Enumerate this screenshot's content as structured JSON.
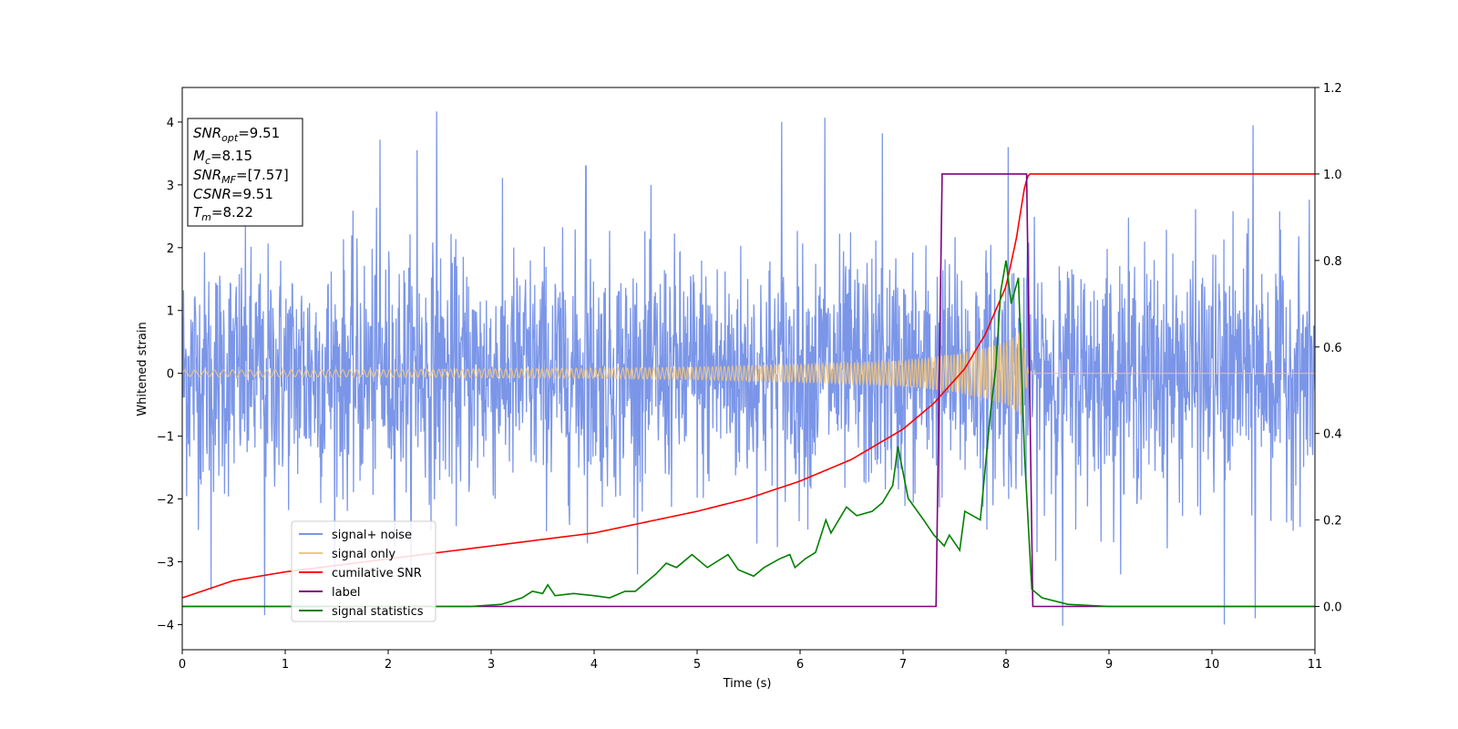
{
  "chart_data": {
    "type": "line",
    "xlabel": "Time (s)",
    "ylabel": "Whitened strain",
    "xlim": [
      0,
      11
    ],
    "ylim_left": [
      -4.4,
      4.55
    ],
    "ylim_right": [
      -0.1,
      1.2
    ],
    "x_ticks": [
      "0",
      "1",
      "2",
      "3",
      "4",
      "5",
      "6",
      "7",
      "8",
      "9",
      "10",
      "11"
    ],
    "y_ticks_left": [
      "−4",
      "−3",
      "−2",
      "−1",
      "0",
      "1",
      "2",
      "3",
      "4"
    ],
    "y_ticks_right": [
      "0.0",
      "0.2",
      "0.4",
      "0.6",
      "0.8",
      "1.0",
      "1.2"
    ],
    "grid": false,
    "legend_position": "lower-left",
    "annotation": {
      "lines": [
        {
          "sym": "SNR",
          "sub": "opt",
          "val": "=9.51"
        },
        {
          "sym": "M",
          "sub": "c",
          "val": "=8.15"
        },
        {
          "sym": "SNR",
          "sub": "MF",
          "val": "=[7.57]"
        },
        {
          "sym": "CSNR",
          "sub": "",
          "val": "=9.51"
        },
        {
          "sym": "T",
          "sub": "m",
          "val": "=8.22"
        }
      ]
    },
    "series": [
      {
        "name": "signal+ noise",
        "color": "#7b96e8",
        "axis": "left",
        "description": "whitened noise, amplitude about ±2, spikes to ~4",
        "spike_peaks": [
          [
            0.28,
            -3.45
          ],
          [
            0.8,
            -3.85
          ],
          [
            1.92,
            3.72
          ],
          [
            2.47,
            4.17
          ],
          [
            2.28,
            3.55
          ],
          [
            3.92,
            3.3
          ],
          [
            5.82,
            4.0
          ],
          [
            6.24,
            4.07
          ],
          [
            6.8,
            3.82
          ],
          [
            8.02,
            3.6
          ],
          [
            10.12,
            -4.0
          ],
          [
            10.42,
            -3.9
          ],
          [
            8.55,
            -4.02
          ],
          [
            10.4,
            3.95
          ]
        ]
      },
      {
        "name": "signal only",
        "color": "#f4c77a",
        "axis": "left",
        "envelope": [
          [
            0,
            0.05
          ],
          [
            2,
            0.06
          ],
          [
            4,
            0.08
          ],
          [
            5,
            0.1
          ],
          [
            6,
            0.14
          ],
          [
            7,
            0.2
          ],
          [
            7.5,
            0.3
          ],
          [
            7.8,
            0.4
          ],
          [
            8.0,
            0.5
          ],
          [
            8.1,
            0.6
          ],
          [
            8.15,
            0.7
          ],
          [
            8.22,
            0.0
          ],
          [
            11,
            0.0
          ]
        ]
      },
      {
        "name": "cumilative SNR",
        "color": "#ff0000",
        "axis": "right",
        "points": [
          [
            0,
            0.02
          ],
          [
            0.5,
            0.06
          ],
          [
            1,
            0.08
          ],
          [
            2,
            0.11
          ],
          [
            3,
            0.14
          ],
          [
            4,
            0.17
          ],
          [
            5,
            0.22
          ],
          [
            5.5,
            0.25
          ],
          [
            6,
            0.29
          ],
          [
            6.5,
            0.34
          ],
          [
            7,
            0.41
          ],
          [
            7.3,
            0.47
          ],
          [
            7.6,
            0.55
          ],
          [
            7.8,
            0.63
          ],
          [
            8.0,
            0.74
          ],
          [
            8.1,
            0.85
          ],
          [
            8.18,
            0.97
          ],
          [
            8.22,
            1.0
          ],
          [
            11,
            1.0
          ]
        ]
      },
      {
        "name": "label",
        "color": "#800080",
        "axis": "right",
        "points": [
          [
            0,
            0
          ],
          [
            7.32,
            0
          ],
          [
            7.38,
            1
          ],
          [
            8.2,
            1
          ],
          [
            8.26,
            0
          ],
          [
            11,
            0
          ]
        ]
      },
      {
        "name": "signal statistics",
        "color": "#008000",
        "axis": "right",
        "points": [
          [
            0,
            0.0
          ],
          [
            1,
            0.0
          ],
          [
            2,
            0.0
          ],
          [
            2.8,
            0.0
          ],
          [
            3.1,
            0.005
          ],
          [
            3.3,
            0.02
          ],
          [
            3.4,
            0.035
          ],
          [
            3.5,
            0.03
          ],
          [
            3.55,
            0.05
          ],
          [
            3.62,
            0.025
          ],
          [
            3.8,
            0.03
          ],
          [
            4.0,
            0.025
          ],
          [
            4.15,
            0.02
          ],
          [
            4.3,
            0.035
          ],
          [
            4.4,
            0.035
          ],
          [
            4.6,
            0.075
          ],
          [
            4.7,
            0.1
          ],
          [
            4.8,
            0.09
          ],
          [
            4.95,
            0.12
          ],
          [
            5.1,
            0.09
          ],
          [
            5.3,
            0.12
          ],
          [
            5.4,
            0.085
          ],
          [
            5.55,
            0.07
          ],
          [
            5.65,
            0.09
          ],
          [
            5.8,
            0.11
          ],
          [
            5.9,
            0.12
          ],
          [
            5.95,
            0.09
          ],
          [
            6.05,
            0.11
          ],
          [
            6.15,
            0.125
          ],
          [
            6.25,
            0.2
          ],
          [
            6.3,
            0.17
          ],
          [
            6.45,
            0.23
          ],
          [
            6.55,
            0.21
          ],
          [
            6.7,
            0.22
          ],
          [
            6.8,
            0.24
          ],
          [
            6.9,
            0.28
          ],
          [
            6.95,
            0.37
          ],
          [
            7.05,
            0.25
          ],
          [
            7.2,
            0.2
          ],
          [
            7.3,
            0.165
          ],
          [
            7.4,
            0.14
          ],
          [
            7.45,
            0.165
          ],
          [
            7.55,
            0.13
          ],
          [
            7.6,
            0.22
          ],
          [
            7.75,
            0.2
          ],
          [
            7.85,
            0.45
          ],
          [
            7.9,
            0.55
          ],
          [
            7.95,
            0.73
          ],
          [
            8.0,
            0.8
          ],
          [
            8.05,
            0.7
          ],
          [
            8.12,
            0.76
          ],
          [
            8.18,
            0.35
          ],
          [
            8.25,
            0.04
          ],
          [
            8.35,
            0.02
          ],
          [
            8.6,
            0.005
          ],
          [
            9,
            0.0
          ],
          [
            10,
            0.0
          ],
          [
            11,
            0.0
          ]
        ]
      }
    ]
  }
}
